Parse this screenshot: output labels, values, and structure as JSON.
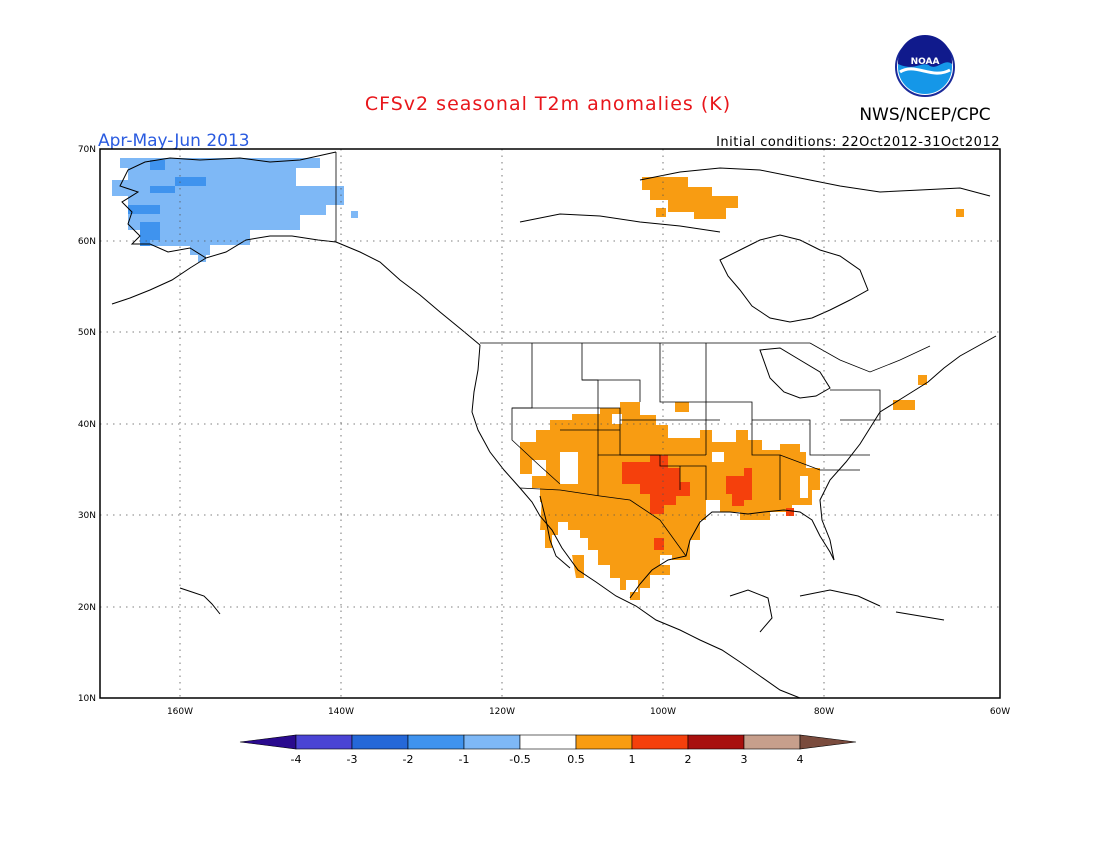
{
  "header": {
    "title": "CFSv2 seasonal T2m anomalies (K)",
    "season": "Apr-May-Jun 2013",
    "initial_conditions": "Initial conditions: 22Oct2012-31Oct2012",
    "organization": "NWS/NCEP/CPC",
    "logo_text": "NOAA"
  },
  "colors": {
    "title": "#e8161b",
    "season": "#2a5be0",
    "ocean_logo": "#1597e8",
    "logo_navy": "#101a8c"
  },
  "map": {
    "lon_range": [
      -172,
      -60
    ],
    "lat_range": [
      10,
      70
    ],
    "lat_labels": [
      "70N",
      "60N",
      "50N",
      "40N",
      "30N",
      "20N",
      "10N"
    ],
    "lon_labels": [
      "160W",
      "140W",
      "120W",
      "100W",
      "80W",
      "60W"
    ],
    "gridlines": "dotted"
  },
  "colorbar": {
    "labels": [
      "-4",
      "-3",
      "-2",
      "-1",
      "-0.5",
      "0.5",
      "1",
      "2",
      "3",
      "4"
    ],
    "colors": [
      "#2a0a8e",
      "#4a44d4",
      "#2568d8",
      "#3f93ee",
      "#7eb8f6",
      "#ffffff",
      "#f89c12",
      "#f5400c",
      "#a8100e",
      "#c79f8c",
      "#7a4b3d"
    ],
    "extend": "both"
  },
  "anomaly_regions": [
    {
      "name": "alaska-cool",
      "category": "-0.5 to -1"
    },
    {
      "name": "alaska-cool-core",
      "category": "-1 to -2"
    },
    {
      "name": "canada-warm",
      "category": "0.5 to 1"
    },
    {
      "name": "us-mexico-warm",
      "category": "0.5 to 1"
    },
    {
      "name": "southern-plains-warm-core",
      "category": "1 to 2"
    },
    {
      "name": "new-england-warm",
      "category": "0.5 to 1"
    }
  ]
}
